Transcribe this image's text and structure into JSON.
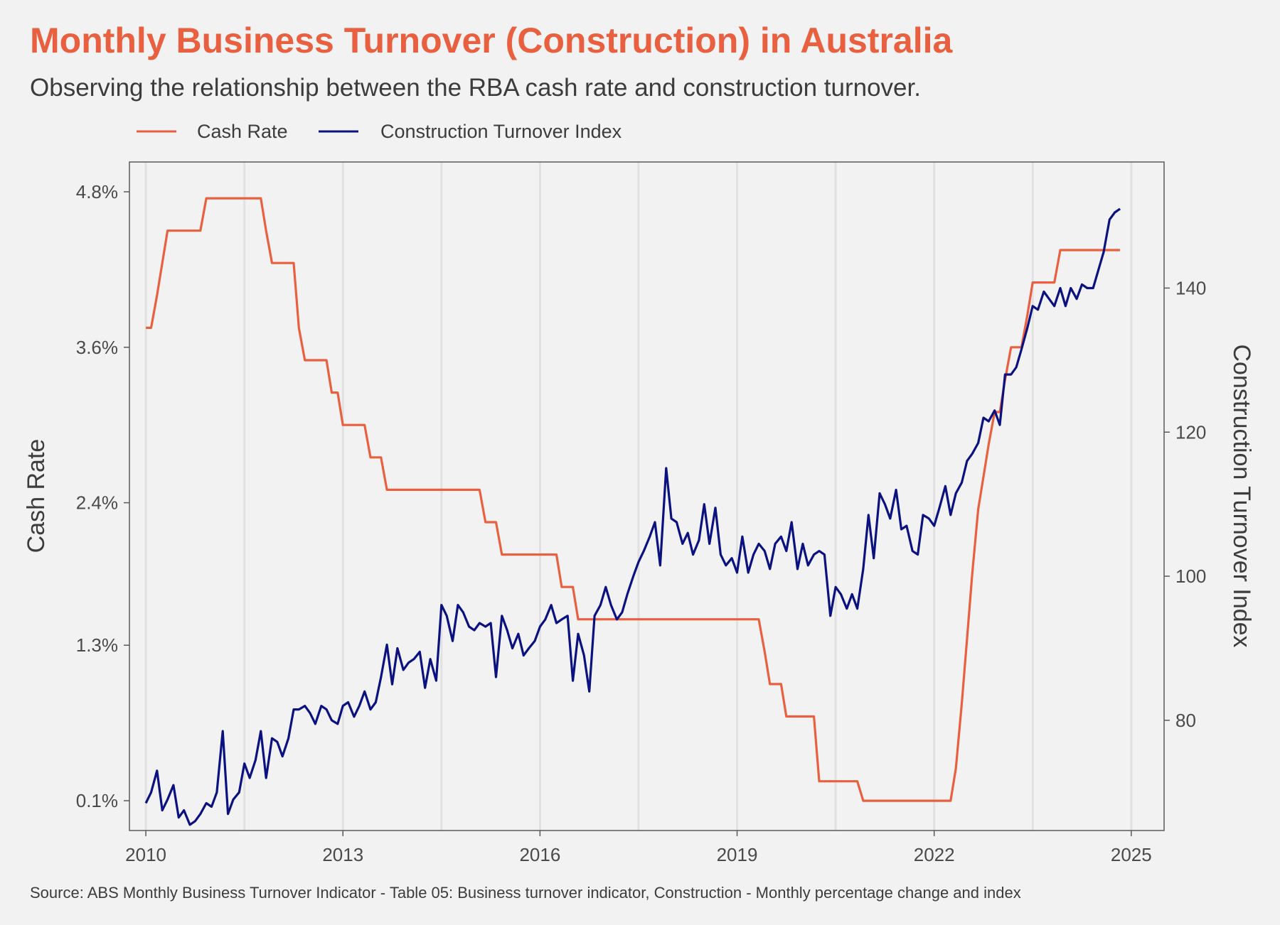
{
  "chart_data": {
    "type": "line",
    "title": "Monthly Business Turnover (Construction) in Australia",
    "subtitle": "Observing the relationship between the RBA cash rate and construction turnover.",
    "source": "Source: ABS Monthly Business Turnover Indicator - Table 05: Business turnover indicator, Construction - Monthly percentage change and index",
    "ylabel": "Cash Rate",
    "y2label": "Construction Turnover Index",
    "xlim": [
      2009.75,
      2025.5
    ],
    "ylim": [
      -0.13,
      5.03
    ],
    "y2lim": [
      64.7,
      157.5
    ],
    "x_ticks": [
      2010,
      2013,
      2016,
      2019,
      2022,
      2025
    ],
    "x_tick_labels": [
      "2010",
      "2013",
      "2016",
      "2019",
      "2022",
      "2025"
    ],
    "y_ticks": [
      0.1,
      1.3,
      2.4,
      3.6,
      4.8
    ],
    "y_tick_labels": [
      "0.1%",
      "1.3%",
      "2.4%",
      "3.6%",
      "4.8%"
    ],
    "y2_ticks": [
      80,
      100,
      120,
      140
    ],
    "y2_tick_labels": [
      "80",
      "100",
      "120",
      "140"
    ],
    "vertical_gridlines": [
      2010,
      2011.5,
      2013,
      2014.5,
      2016,
      2017.5,
      2019,
      2020.5,
      2022,
      2023.5,
      2025
    ],
    "legend_position": "top",
    "series": [
      {
        "name": "Cash Rate",
        "axis": "left",
        "color": "#e8603f",
        "points": [
          [
            2010.0,
            3.75
          ],
          [
            2010.08,
            3.75
          ],
          [
            2010.17,
            4.0
          ],
          [
            2010.25,
            4.25
          ],
          [
            2010.33,
            4.5
          ],
          [
            2010.42,
            4.5
          ],
          [
            2010.83,
            4.5
          ],
          [
            2010.92,
            4.75
          ],
          [
            2011.0,
            4.75
          ],
          [
            2011.75,
            4.75
          ],
          [
            2011.83,
            4.5
          ],
          [
            2011.92,
            4.25
          ],
          [
            2012.0,
            4.25
          ],
          [
            2012.25,
            4.25
          ],
          [
            2012.33,
            3.75
          ],
          [
            2012.42,
            3.5
          ],
          [
            2012.5,
            3.5
          ],
          [
            2012.75,
            3.5
          ],
          [
            2012.83,
            3.25
          ],
          [
            2012.92,
            3.25
          ],
          [
            2013.0,
            3.0
          ],
          [
            2013.33,
            3.0
          ],
          [
            2013.42,
            2.75
          ],
          [
            2013.58,
            2.75
          ],
          [
            2013.67,
            2.5
          ],
          [
            2013.75,
            2.5
          ],
          [
            2015.08,
            2.5
          ],
          [
            2015.17,
            2.25
          ],
          [
            2015.33,
            2.25
          ],
          [
            2015.42,
            2.0
          ],
          [
            2016.25,
            2.0
          ],
          [
            2016.33,
            1.75
          ],
          [
            2016.5,
            1.75
          ],
          [
            2016.58,
            1.5
          ],
          [
            2019.33,
            1.5
          ],
          [
            2019.42,
            1.25
          ],
          [
            2019.5,
            1.0
          ],
          [
            2019.67,
            1.0
          ],
          [
            2019.75,
            0.75
          ],
          [
            2020.17,
            0.75
          ],
          [
            2020.25,
            0.25
          ],
          [
            2020.33,
            0.25
          ],
          [
            2020.83,
            0.25
          ],
          [
            2020.92,
            0.1
          ],
          [
            2022.25,
            0.1
          ],
          [
            2022.33,
            0.35
          ],
          [
            2022.42,
            0.85
          ],
          [
            2022.5,
            1.35
          ],
          [
            2022.58,
            1.85
          ],
          [
            2022.67,
            2.35
          ],
          [
            2022.75,
            2.6
          ],
          [
            2022.83,
            2.85
          ],
          [
            2022.92,
            3.1
          ],
          [
            2023.0,
            3.1
          ],
          [
            2023.08,
            3.35
          ],
          [
            2023.17,
            3.6
          ],
          [
            2023.25,
            3.6
          ],
          [
            2023.33,
            3.6
          ],
          [
            2023.42,
            3.85
          ],
          [
            2023.5,
            4.1
          ],
          [
            2023.83,
            4.1
          ],
          [
            2023.92,
            4.35
          ],
          [
            2024.0,
            4.35
          ],
          [
            2024.83,
            4.35
          ]
        ]
      },
      {
        "name": "Construction Turnover Index",
        "axis": "right",
        "color": "#0b1280",
        "points": [
          [
            2010.0,
            68.5
          ],
          [
            2010.08,
            70.0
          ],
          [
            2010.17,
            73.0
          ],
          [
            2010.25,
            67.5
          ],
          [
            2010.33,
            69.0
          ],
          [
            2010.42,
            71.0
          ],
          [
            2010.5,
            66.5
          ],
          [
            2010.58,
            67.5
          ],
          [
            2010.67,
            65.5
          ],
          [
            2010.75,
            66.0
          ],
          [
            2010.83,
            67.0
          ],
          [
            2010.92,
            68.5
          ],
          [
            2011.0,
            68.0
          ],
          [
            2011.08,
            70.0
          ],
          [
            2011.17,
            78.5
          ],
          [
            2011.25,
            67.0
          ],
          [
            2011.33,
            69.0
          ],
          [
            2011.42,
            70.0
          ],
          [
            2011.5,
            74.0
          ],
          [
            2011.58,
            72.0
          ],
          [
            2011.67,
            74.5
          ],
          [
            2011.75,
            78.5
          ],
          [
            2011.83,
            72.0
          ],
          [
            2011.92,
            77.5
          ],
          [
            2012.0,
            77.0
          ],
          [
            2012.08,
            75.0
          ],
          [
            2012.17,
            77.5
          ],
          [
            2012.25,
            81.5
          ],
          [
            2012.33,
            81.5
          ],
          [
            2012.42,
            82.0
          ],
          [
            2012.5,
            81.0
          ],
          [
            2012.58,
            79.5
          ],
          [
            2012.67,
            82.0
          ],
          [
            2012.75,
            81.5
          ],
          [
            2012.83,
            80.0
          ],
          [
            2012.92,
            79.5
          ],
          [
            2013.0,
            82.0
          ],
          [
            2013.08,
            82.5
          ],
          [
            2013.17,
            80.5
          ],
          [
            2013.25,
            82.0
          ],
          [
            2013.33,
            84.0
          ],
          [
            2013.42,
            81.5
          ],
          [
            2013.5,
            82.5
          ],
          [
            2013.58,
            86.0
          ],
          [
            2013.67,
            90.5
          ],
          [
            2013.75,
            85.0
          ],
          [
            2013.83,
            90.0
          ],
          [
            2013.92,
            87.0
          ],
          [
            2014.0,
            88.0
          ],
          [
            2014.08,
            88.5
          ],
          [
            2014.17,
            89.5
          ],
          [
            2014.25,
            84.5
          ],
          [
            2014.33,
            88.5
          ],
          [
            2014.42,
            85.5
          ],
          [
            2014.5,
            96.0
          ],
          [
            2014.58,
            94.5
          ],
          [
            2014.67,
            91.0
          ],
          [
            2014.75,
            96.0
          ],
          [
            2014.83,
            95.0
          ],
          [
            2014.92,
            93.0
          ],
          [
            2015.0,
            92.5
          ],
          [
            2015.08,
            93.5
          ],
          [
            2015.17,
            93.0
          ],
          [
            2015.25,
            93.5
          ],
          [
            2015.33,
            86.0
          ],
          [
            2015.42,
            94.5
          ],
          [
            2015.5,
            92.5
          ],
          [
            2015.58,
            90.0
          ],
          [
            2015.67,
            92.0
          ],
          [
            2015.75,
            89.0
          ],
          [
            2015.83,
            90.0
          ],
          [
            2015.92,
            91.0
          ],
          [
            2016.0,
            93.0
          ],
          [
            2016.08,
            94.0
          ],
          [
            2016.17,
            96.0
          ],
          [
            2016.25,
            93.5
          ],
          [
            2016.33,
            94.0
          ],
          [
            2016.42,
            94.5
          ],
          [
            2016.5,
            85.5
          ],
          [
            2016.58,
            92.0
          ],
          [
            2016.67,
            89.0
          ],
          [
            2016.75,
            84.0
          ],
          [
            2016.83,
            94.5
          ],
          [
            2016.92,
            96.0
          ],
          [
            2017.0,
            98.5
          ],
          [
            2017.08,
            96.0
          ],
          [
            2017.17,
            94.0
          ],
          [
            2017.25,
            95.0
          ],
          [
            2017.33,
            97.5
          ],
          [
            2017.42,
            100.0
          ],
          [
            2017.5,
            102.0
          ],
          [
            2017.58,
            103.5
          ],
          [
            2017.67,
            105.5
          ],
          [
            2017.75,
            107.5
          ],
          [
            2017.83,
            101.5
          ],
          [
            2017.92,
            115.0
          ],
          [
            2018.0,
            108.0
          ],
          [
            2018.08,
            107.5
          ],
          [
            2018.17,
            104.5
          ],
          [
            2018.25,
            106.0
          ],
          [
            2018.33,
            103.0
          ],
          [
            2018.42,
            105.0
          ],
          [
            2018.5,
            110.0
          ],
          [
            2018.58,
            104.5
          ],
          [
            2018.67,
            109.5
          ],
          [
            2018.75,
            103.0
          ],
          [
            2018.83,
            101.5
          ],
          [
            2018.92,
            102.5
          ],
          [
            2019.0,
            100.5
          ],
          [
            2019.08,
            105.5
          ],
          [
            2019.17,
            100.5
          ],
          [
            2019.25,
            103.0
          ],
          [
            2019.33,
            104.5
          ],
          [
            2019.42,
            103.5
          ],
          [
            2019.5,
            101.0
          ],
          [
            2019.58,
            104.5
          ],
          [
            2019.67,
            105.5
          ],
          [
            2019.75,
            103.5
          ],
          [
            2019.83,
            107.5
          ],
          [
            2019.92,
            101.0
          ],
          [
            2020.0,
            104.5
          ],
          [
            2020.08,
            101.5
          ],
          [
            2020.17,
            103.0
          ],
          [
            2020.25,
            103.5
          ],
          [
            2020.33,
            103.0
          ],
          [
            2020.42,
            94.5
          ],
          [
            2020.5,
            98.5
          ],
          [
            2020.58,
            97.5
          ],
          [
            2020.67,
            95.5
          ],
          [
            2020.75,
            97.5
          ],
          [
            2020.83,
            95.5
          ],
          [
            2020.92,
            101.0
          ],
          [
            2021.0,
            108.5
          ],
          [
            2021.08,
            102.5
          ],
          [
            2021.17,
            111.5
          ],
          [
            2021.25,
            110.0
          ],
          [
            2021.33,
            108.0
          ],
          [
            2021.42,
            112.0
          ],
          [
            2021.5,
            106.5
          ],
          [
            2021.58,
            107.0
          ],
          [
            2021.67,
            103.5
          ],
          [
            2021.75,
            103.0
          ],
          [
            2021.83,
            108.5
          ],
          [
            2021.92,
            108.0
          ],
          [
            2022.0,
            107.0
          ],
          [
            2022.08,
            109.5
          ],
          [
            2022.17,
            112.5
          ],
          [
            2022.25,
            108.5
          ],
          [
            2022.33,
            111.5
          ],
          [
            2022.42,
            113.0
          ],
          [
            2022.5,
            116.0
          ],
          [
            2022.58,
            117.0
          ],
          [
            2022.67,
            118.5
          ],
          [
            2022.75,
            122.0
          ],
          [
            2022.83,
            121.5
          ],
          [
            2022.92,
            123.0
          ],
          [
            2023.0,
            121.0
          ],
          [
            2023.08,
            128.0
          ],
          [
            2023.17,
            128.0
          ],
          [
            2023.25,
            129.0
          ],
          [
            2023.33,
            131.5
          ],
          [
            2023.42,
            134.5
          ],
          [
            2023.5,
            137.5
          ],
          [
            2023.58,
            137.0
          ],
          [
            2023.67,
            139.5
          ],
          [
            2023.75,
            138.5
          ],
          [
            2023.83,
            137.5
          ],
          [
            2023.92,
            140.0
          ],
          [
            2024.0,
            137.5
          ],
          [
            2024.08,
            140.0
          ],
          [
            2024.17,
            138.5
          ],
          [
            2024.25,
            140.5
          ],
          [
            2024.33,
            140.0
          ],
          [
            2024.42,
            140.0
          ],
          [
            2024.5,
            142.5
          ],
          [
            2024.58,
            145.0
          ],
          [
            2024.67,
            149.5
          ],
          [
            2024.75,
            150.5
          ],
          [
            2024.83,
            151.0
          ]
        ]
      }
    ]
  }
}
